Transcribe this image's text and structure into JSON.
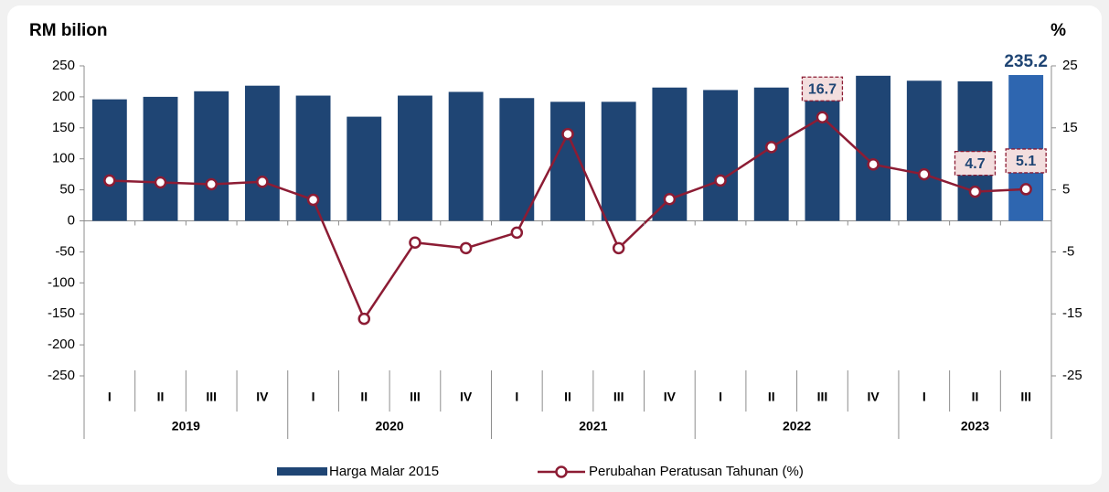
{
  "chart_data": {
    "type": "bar_line",
    "y_label": "RM bilion",
    "y2_label": "%",
    "groups": [
      {
        "name": "2019",
        "categories": [
          "I",
          "II",
          "III",
          "IV"
        ]
      },
      {
        "name": "2020",
        "categories": [
          "I",
          "II",
          "III",
          "IV"
        ]
      },
      {
        "name": "2021",
        "categories": [
          "I",
          "II",
          "III",
          "IV"
        ]
      },
      {
        "name": "2022",
        "categories": [
          "I",
          "II",
          "III",
          "IV"
        ]
      },
      {
        "name": "2023",
        "categories": [
          "I",
          "II",
          "III"
        ]
      }
    ],
    "series": [
      {
        "name": "Harga Malar 2015",
        "type": "bar",
        "color": "#1f4574",
        "point_colors": [
          "#1f4574",
          "#1f4574",
          "#1f4574",
          "#1f4574",
          "#1f4574",
          "#1f4574",
          "#1f4574",
          "#1f4574",
          "#1f4574",
          "#1f4574",
          "#1f4574",
          "#1f4574",
          "#1f4574",
          "#1f4574",
          "#1f4574",
          "#1f4574",
          "#1f4574",
          "#1f4574",
          "#2e66b0"
        ],
        "values": [
          196,
          200,
          209,
          218,
          202,
          168,
          202,
          208,
          198,
          192,
          192,
          215,
          211,
          215,
          224,
          234,
          226,
          225,
          235.2
        ],
        "value_labels": [
          null,
          null,
          null,
          null,
          null,
          null,
          null,
          null,
          null,
          null,
          null,
          null,
          null,
          null,
          null,
          null,
          null,
          null,
          "235.2"
        ]
      },
      {
        "name": "Perubahan Peratusan Tahunan (%)",
        "type": "line",
        "axis": "y2",
        "color": "#8c1c34",
        "values": [
          6.5,
          6.2,
          5.9,
          6.3,
          3.4,
          -15.8,
          -3.5,
          -4.4,
          -1.9,
          14.0,
          -4.4,
          3.5,
          6.5,
          11.9,
          16.7,
          9.1,
          7.5,
          4.7,
          5.1
        ],
        "value_labels": [
          null,
          null,
          null,
          null,
          null,
          null,
          null,
          null,
          null,
          null,
          null,
          null,
          null,
          null,
          "16.7",
          null,
          null,
          "4.7",
          "5.1"
        ]
      }
    ],
    "ylim": [
      -250,
      250
    ],
    "yticks": [
      -250,
      -200,
      -150,
      -100,
      -50,
      0,
      50,
      100,
      150,
      200,
      250
    ],
    "y2lim": [
      -25,
      25
    ],
    "y2ticks": [
      -25,
      -15,
      -5,
      5,
      15,
      25
    ],
    "legend": "bottom"
  }
}
